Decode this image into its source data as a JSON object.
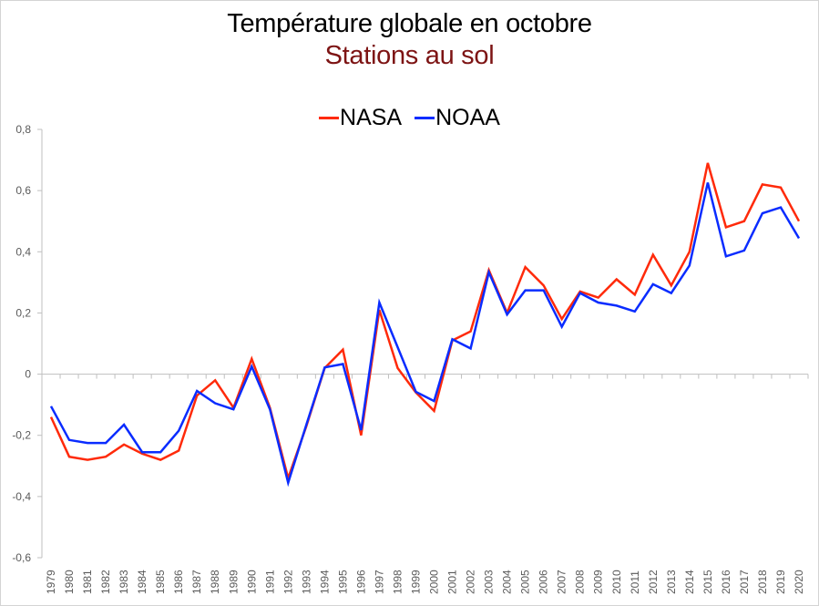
{
  "chart_data": {
    "type": "line",
    "title": "Température globale en octobre",
    "subtitle": "Stations au sol",
    "xlabel": "",
    "ylabel": "",
    "x": [
      "1979",
      "1980",
      "1981",
      "1982",
      "1983",
      "1984",
      "1985",
      "1986",
      "1987",
      "1988",
      "1989",
      "1990",
      "1991",
      "1992",
      "1993",
      "1994",
      "1995",
      "1996",
      "1997",
      "1998",
      "1999",
      "2000",
      "2001",
      "2002",
      "2003",
      "2004",
      "2005",
      "2006",
      "2007",
      "2008",
      "2009",
      "2010",
      "2011",
      "2012",
      "2013",
      "2014",
      "2015",
      "2016",
      "2017",
      "2018",
      "2019",
      "2020"
    ],
    "series": [
      {
        "name": "NASA",
        "color": "#ff2a0a",
        "values": [
          -0.14,
          -0.27,
          -0.28,
          -0.27,
          -0.23,
          -0.26,
          -0.28,
          -0.25,
          -0.07,
          -0.02,
          -0.11,
          0.05,
          -0.11,
          -0.34,
          -0.17,
          0.02,
          0.08,
          -0.2,
          0.21,
          0.02,
          -0.06,
          -0.12,
          0.11,
          0.14,
          0.34,
          0.2,
          0.35,
          0.29,
          0.18,
          0.27,
          0.25,
          0.31,
          0.26,
          0.39,
          0.29,
          0.4,
          0.69,
          0.48,
          0.5,
          0.62,
          0.61,
          0.5
        ]
      },
      {
        "name": "NOAA",
        "color": "#0a2cff",
        "values": [
          -0.105,
          -0.215,
          -0.225,
          -0.225,
          -0.165,
          -0.255,
          -0.255,
          -0.185,
          -0.055,
          -0.095,
          -0.115,
          0.025,
          -0.115,
          -0.355,
          -0.165,
          0.022,
          0.033,
          -0.183,
          0.234,
          0.088,
          -0.058,
          -0.088,
          0.114,
          0.084,
          0.333,
          0.195,
          0.274,
          0.274,
          0.155,
          0.265,
          0.234,
          0.224,
          0.205,
          0.294,
          0.265,
          0.355,
          0.626,
          0.385,
          0.404,
          0.526,
          0.545,
          0.444
        ]
      }
    ],
    "yticks": [
      "-0,6",
      "-0,4",
      "-0,2",
      "0",
      "0,2",
      "0,4",
      "0,6",
      "0,8"
    ],
    "ytick_values": [
      -0.6,
      -0.4,
      -0.2,
      0,
      0.2,
      0.4,
      0.6,
      0.8
    ],
    "ylim": [
      -0.6,
      0.8
    ],
    "grid": false,
    "legend_position": "top-center"
  },
  "colors": {
    "subtitle": "#7d1414",
    "axis": "#bfbfbf",
    "tick_label": "#595959"
  }
}
